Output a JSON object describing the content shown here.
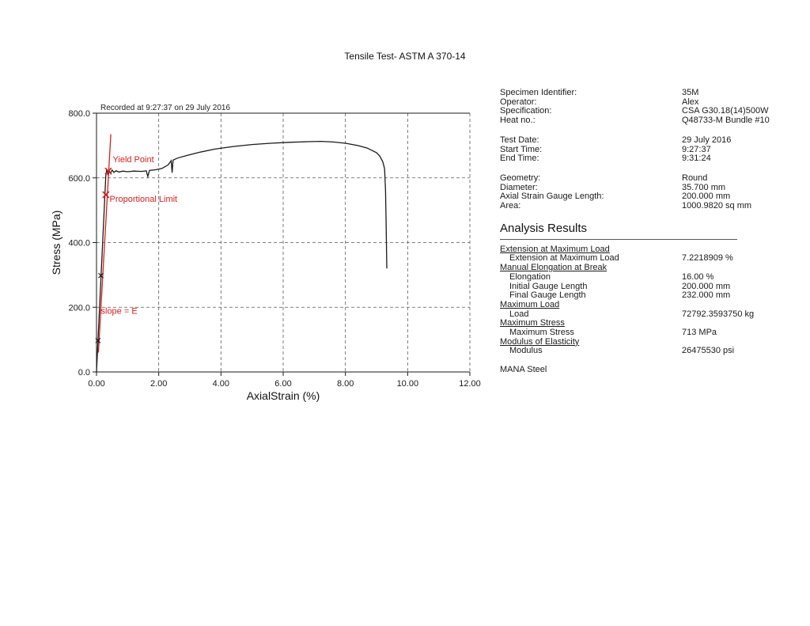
{
  "page": {
    "title": "Tensile Test- ASTM A 370-14"
  },
  "chart_data": {
    "type": "line",
    "note": "Recorded at 9:27:37 on 29 July 2016",
    "xlabel": "AxialStrain (%)",
    "ylabel": "Stress (MPa)",
    "xlim": [
      0,
      12
    ],
    "ylim": [
      0,
      800
    ],
    "grid": "dashed",
    "xticks": [
      {
        "v": 0,
        "label": "0.00"
      },
      {
        "v": 2,
        "label": "2.00"
      },
      {
        "v": 4,
        "label": "4.00"
      },
      {
        "v": 6,
        "label": "6.00"
      },
      {
        "v": 8,
        "label": "8.00"
      },
      {
        "v": 10,
        "label": "10.00"
      },
      {
        "v": 12,
        "label": "12.00"
      }
    ],
    "yticks": [
      {
        "v": 0,
        "label": "0.0"
      },
      {
        "v": 200,
        "label": "200.0"
      },
      {
        "v": 400,
        "label": "400.0"
      },
      {
        "v": 600,
        "label": "600.0"
      },
      {
        "v": 800,
        "label": "800.0"
      }
    ],
    "series": [
      {
        "name": "stress-strain-curve",
        "color": "#1a1a1a",
        "width": 1.3,
        "points": [
          [
            0,
            0
          ],
          [
            0.3,
            608
          ],
          [
            0.33,
            626
          ],
          [
            0.36,
            612
          ],
          [
            0.4,
            623
          ],
          [
            0.45,
            614
          ],
          [
            0.5,
            624
          ],
          [
            0.56,
            617
          ],
          [
            0.63,
            622
          ],
          [
            0.72,
            618
          ],
          [
            0.85,
            621
          ],
          [
            1.0,
            619
          ],
          [
            1.2,
            621
          ],
          [
            1.45,
            620
          ],
          [
            1.6,
            622
          ],
          [
            1.65,
            604
          ],
          [
            1.7,
            623
          ],
          [
            1.9,
            625
          ],
          [
            2.1,
            629
          ],
          [
            2.3,
            640
          ],
          [
            2.4,
            653
          ],
          [
            2.43,
            616
          ],
          [
            2.46,
            655
          ],
          [
            2.6,
            661
          ],
          [
            2.9,
            669
          ],
          [
            3.3,
            679
          ],
          [
            3.8,
            689
          ],
          [
            4.4,
            697
          ],
          [
            5.0,
            703
          ],
          [
            5.6,
            707
          ],
          [
            6.2,
            710
          ],
          [
            6.8,
            712
          ],
          [
            7.2,
            713
          ],
          [
            7.6,
            711
          ],
          [
            8.0,
            707
          ],
          [
            8.4,
            700
          ],
          [
            8.7,
            692
          ],
          [
            9.0,
            678
          ],
          [
            9.1,
            668
          ],
          [
            9.2,
            650
          ],
          [
            9.26,
            628
          ],
          [
            9.29,
            560
          ],
          [
            9.31,
            450
          ],
          [
            9.33,
            320
          ]
        ]
      },
      {
        "name": "modulus-line",
        "color": "#d42020",
        "width": 1.3,
        "points": [
          [
            0.06,
            60
          ],
          [
            0.46,
            735
          ]
        ]
      }
    ],
    "markers": [
      {
        "name": "yield-point",
        "x": 0.38,
        "y": 621,
        "color": "#d42020",
        "size": 6
      },
      {
        "name": "proportional-limit",
        "x": 0.3,
        "y": 548,
        "color": "#d42020",
        "size": 6
      },
      {
        "name": "elastic-point-300",
        "x": 0.14,
        "y": 298,
        "color": "#1a1a1a",
        "size": 4
      },
      {
        "name": "elastic-point-100",
        "x": 0.05,
        "y": 97,
        "color": "#1a1a1a",
        "size": 4
      }
    ],
    "annotations": [
      {
        "text": "Yield Point",
        "x": 0.52,
        "y": 648,
        "color": "#d42020"
      },
      {
        "text": "Proportional Limit",
        "x": 0.42,
        "y": 526,
        "color": "#d42020"
      },
      {
        "text": "slope = E",
        "x": 0.14,
        "y": 180,
        "color": "#d42020"
      }
    ]
  },
  "specimen": {
    "groups": [
      {
        "rows": [
          {
            "label": "Specimen Identifier:",
            "value": "35M"
          },
          {
            "label": "Operator:",
            "value": "Alex"
          },
          {
            "label": "Specification:",
            "value": "CSA G30.18(14)500W"
          },
          {
            "label": "Heat no.:",
            "value": "Q48733-M Bundle #10"
          }
        ]
      },
      {
        "rows": [
          {
            "label": "Test Date:",
            "value": "29 July 2016"
          },
          {
            "label": "Start Time:",
            "value": "9:27:37"
          },
          {
            "label": "End Time:",
            "value": "9:31:24"
          }
        ]
      },
      {
        "rows": [
          {
            "label": "Geometry:",
            "value": "Round"
          },
          {
            "label": "Diameter:",
            "value": "35.700 mm"
          },
          {
            "label": "Axial Strain Gauge Length:",
            "value": "200.000 mm"
          },
          {
            "label": "Area:",
            "value": "1000.9820 sq mm"
          }
        ]
      }
    ]
  },
  "analysis": {
    "heading": "Analysis Results",
    "groups": [
      {
        "header": "Extension at Maximum Load",
        "rows": [
          {
            "label": "Extension at Maximum Load",
            "value": "7.2218909 %"
          }
        ]
      },
      {
        "header": "Manual Elongation at Break",
        "rows": [
          {
            "label": "Elongation",
            "value": "16.00 %"
          },
          {
            "label": "Initial Gauge Length",
            "value": "200.000 mm"
          },
          {
            "label": "Final Gauge Length",
            "value": "232.000 mm"
          }
        ]
      },
      {
        "header": "Maximum Load",
        "rows": [
          {
            "label": "Load",
            "value": "72792.3593750 kg"
          }
        ]
      },
      {
        "header": "Maximum Stress",
        "rows": [
          {
            "label": "Maximum Stress",
            "value": "713 MPa"
          }
        ]
      },
      {
        "header": "Modulus of Elasticity",
        "rows": [
          {
            "label": "Modulus",
            "value": "26475530 psi"
          }
        ]
      }
    ],
    "footer": "MANA Steel"
  }
}
